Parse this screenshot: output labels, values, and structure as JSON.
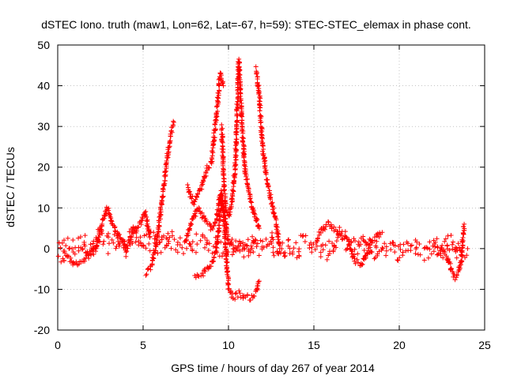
{
  "chart_data": {
    "type": "scatter",
    "title": "dSTEC Iono. truth (maw1, Lon=62, Lat=-67, h=59): STEC-STEC_elemax in phase cont.",
    "xlabel": "GPS time / hours of day 267 of year 2014",
    "ylabel": "dSTEC  / TECUs",
    "xlim": [
      0,
      25
    ],
    "ylim": [
      -20,
      50
    ],
    "x_ticks": [
      "0",
      "5",
      "10",
      "15",
      "20",
      "25"
    ],
    "y_ticks": [
      "-20",
      "-10",
      "0",
      "10",
      "20",
      "30",
      "40",
      "50"
    ],
    "grid": true,
    "marker": "plus",
    "color": "#ff0000",
    "series": [
      {
        "x": [
          0,
          0.5,
          1,
          1.5,
          2,
          2.5,
          3,
          3.5,
          4,
          4.5,
          5,
          5.5,
          6,
          6.5,
          7,
          7.5,
          8,
          8.5,
          9,
          9.5,
          10,
          10.5,
          11,
          11.5,
          12,
          12.5,
          13,
          13.5,
          14,
          14.5,
          15,
          15.5,
          16,
          16.5,
          17,
          17.5,
          18,
          18.5,
          19,
          19.5,
          20,
          20.5,
          21,
          21.5,
          22,
          22.5,
          23,
          23.5,
          24
        ],
        "y": [
          -1,
          1,
          0,
          2,
          -1,
          3,
          1,
          2,
          0,
          4,
          1,
          2,
          0,
          3,
          1,
          0,
          1,
          2,
          1,
          0,
          0,
          1,
          0,
          1,
          0,
          2,
          -1,
          1,
          0,
          2,
          1,
          -1,
          0,
          3,
          1,
          0,
          2,
          -1,
          1,
          0,
          -1,
          1,
          0,
          -1,
          1,
          0,
          2,
          -1,
          0
        ]
      },
      {
        "x": [
          0.2,
          0.6,
          1.0,
          1.4,
          1.8,
          2.2,
          2.6,
          2.9,
          3.2,
          3.6,
          4.0,
          4.4,
          4.8,
          5.1,
          5.4
        ],
        "y": [
          -3,
          -2,
          -4,
          -3,
          -2,
          0,
          6,
          10,
          6,
          3,
          0,
          4,
          6,
          9,
          3
        ]
      },
      {
        "x": [
          5.2,
          5.5,
          5.8,
          6.0,
          6.2,
          6.4,
          6.6,
          6.8
        ],
        "y": [
          -6,
          -4,
          2,
          8,
          15,
          22,
          28,
          31
        ]
      },
      {
        "x": [
          8.0,
          8.5,
          9.0,
          9.3,
          9.5,
          9.6,
          9.8,
          10.0,
          10.3,
          10.6,
          11.0,
          11.3,
          11.6,
          11.8
        ],
        "y": [
          -7,
          -6,
          -4,
          0,
          8,
          14,
          3,
          -10,
          -12,
          -11,
          -12,
          -12,
          -11,
          -8
        ]
      },
      {
        "x": [
          7.5,
          7.8,
          8.2,
          8.6,
          9.0,
          9.3,
          9.5,
          9.7,
          10.0,
          10.4,
          10.8,
          11.2,
          11.6
        ],
        "y": [
          2,
          6,
          10,
          7,
          5,
          7,
          13,
          10,
          2,
          0,
          1,
          0,
          2
        ]
      },
      {
        "x": [
          7.6,
          7.8,
          8.0,
          8.4,
          8.8,
          9.0,
          9.3,
          9.5,
          9.7
        ],
        "y": [
          15,
          13,
          11,
          15,
          20,
          21,
          33,
          43,
          40
        ]
      },
      {
        "x": [
          9.6,
          9.7,
          9.8,
          10.0,
          10.2,
          10.4,
          10.6,
          10.8,
          11.0,
          11.4,
          11.8
        ],
        "y": [
          30,
          20,
          10,
          8,
          12,
          20,
          46,
          30,
          18,
          10,
          5
        ]
      },
      {
        "x": [
          11.6,
          11.8,
          12.0,
          12.2,
          12.5,
          12.8,
          13.0
        ],
        "y": [
          44,
          38,
          25,
          18,
          12,
          6,
          0
        ]
      },
      {
        "x": [
          15.2,
          15.8,
          16.4,
          17.0,
          17.4,
          17.8,
          18.4,
          19.0
        ],
        "y": [
          3,
          6,
          4,
          2,
          -3,
          -4,
          2,
          4
        ]
      },
      {
        "x": [
          22.0,
          22.4,
          22.8,
          23.1,
          23.3,
          23.6,
          23.8
        ],
        "y": [
          1,
          0,
          -2,
          -6,
          -7,
          -4,
          6
        ]
      }
    ]
  }
}
